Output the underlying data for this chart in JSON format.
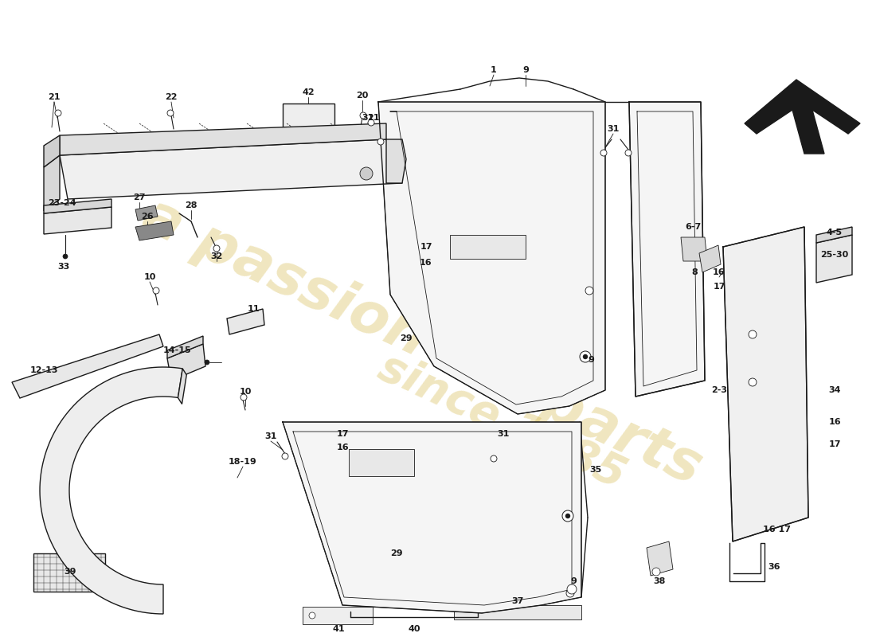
{
  "bg": "#ffffff",
  "lc": "#1a1a1a",
  "watermark1": "a passion for parts",
  "watermark2": "since 1985",
  "wm_color": "#d4b84a",
  "wm_alpha": 0.35,
  "figsize": [
    11.0,
    8.0
  ],
  "dpi": 100
}
